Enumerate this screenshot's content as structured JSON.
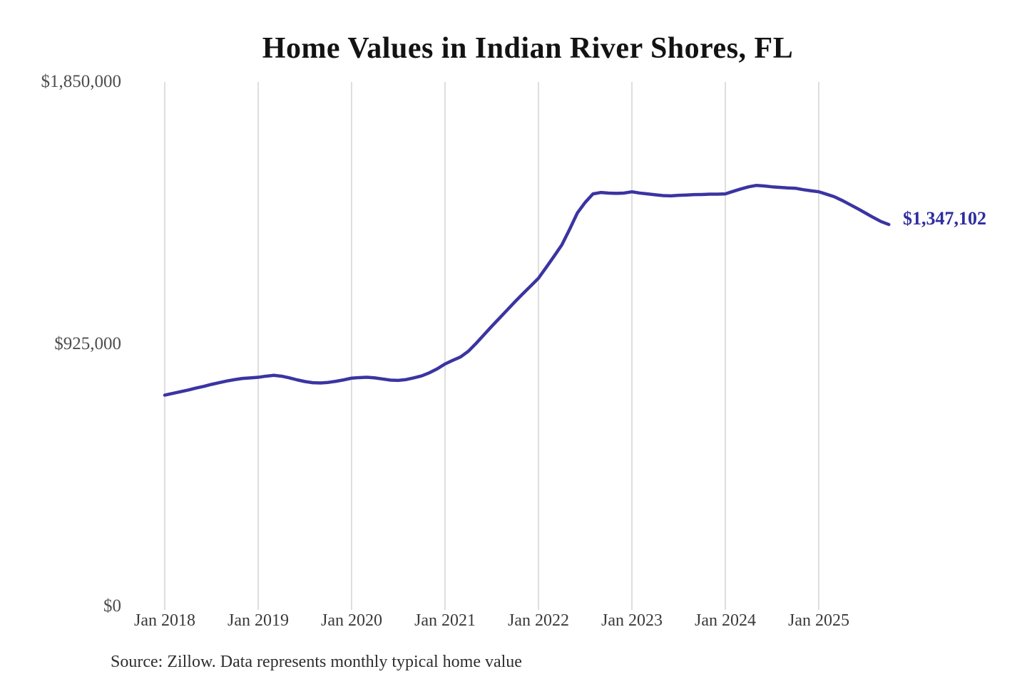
{
  "chart_data": {
    "type": "line",
    "title": "Home Values in Indian River Shores, FL",
    "source_note": "Source: Zillow. Data represents monthly typical home value",
    "end_label": "$1,347,102",
    "end_value": 1347102,
    "line_color": "#3b34a1",
    "grid_color": "#c9c9c9",
    "end_label_color": "#2e2d9f",
    "ylim": [
      0,
      1850000
    ],
    "grid": "vertical-only",
    "legend": "none",
    "xlabel": "",
    "ylabel": "",
    "y_ticks": [
      {
        "label": "$1,850,000",
        "value": 1850000
      },
      {
        "label": "$925,000",
        "value": 925000
      },
      {
        "label": "$0",
        "value": 0
      }
    ],
    "x_ticks": [
      {
        "label": "Jan 2018",
        "month_index": 0
      },
      {
        "label": "Jan 2019",
        "month_index": 12
      },
      {
        "label": "Jan 2020",
        "month_index": 24
      },
      {
        "label": "Jan 2021",
        "month_index": 36
      },
      {
        "label": "Jan 2022",
        "month_index": 48
      },
      {
        "label": "Jan 2023",
        "month_index": 60
      },
      {
        "label": "Jan 2024",
        "month_index": 72
      },
      {
        "label": "Jan 2025",
        "month_index": 84
      }
    ],
    "x": [
      "2018-01",
      "2018-02",
      "2018-03",
      "2018-04",
      "2018-05",
      "2018-06",
      "2018-07",
      "2018-08",
      "2018-09",
      "2018-10",
      "2018-11",
      "2018-12",
      "2019-01",
      "2019-02",
      "2019-03",
      "2019-04",
      "2019-05",
      "2019-06",
      "2019-07",
      "2019-08",
      "2019-09",
      "2019-10",
      "2019-11",
      "2019-12",
      "2020-01",
      "2020-02",
      "2020-03",
      "2020-04",
      "2020-05",
      "2020-06",
      "2020-07",
      "2020-08",
      "2020-09",
      "2020-10",
      "2020-11",
      "2020-12",
      "2021-01",
      "2021-02",
      "2021-03",
      "2021-04",
      "2021-05",
      "2021-06",
      "2021-07",
      "2021-08",
      "2021-09",
      "2021-10",
      "2021-11",
      "2021-12",
      "2022-01",
      "2022-02",
      "2022-03",
      "2022-04",
      "2022-05",
      "2022-06",
      "2022-07",
      "2022-08",
      "2022-09",
      "2022-10",
      "2022-11",
      "2022-12",
      "2023-01",
      "2023-02",
      "2023-03",
      "2023-04",
      "2023-05",
      "2023-06",
      "2023-07",
      "2023-08",
      "2023-09",
      "2023-10",
      "2023-11",
      "2023-12",
      "2024-01",
      "2024-02",
      "2024-03",
      "2024-04",
      "2024-05",
      "2024-06",
      "2024-07",
      "2024-08",
      "2024-09",
      "2024-10",
      "2024-11",
      "2024-12",
      "2025-01",
      "2025-02",
      "2025-03",
      "2025-04",
      "2025-05",
      "2025-06",
      "2025-07",
      "2025-08",
      "2025-09",
      "2025-10"
    ],
    "values": [
      745000,
      751000,
      757000,
      763000,
      770000,
      776000,
      783000,
      789000,
      795000,
      800000,
      804000,
      806000,
      808000,
      812000,
      815000,
      812000,
      806000,
      799000,
      793000,
      789000,
      788000,
      790000,
      794000,
      799000,
      805000,
      807000,
      808000,
      806000,
      802000,
      798000,
      797000,
      800000,
      806000,
      813000,
      824000,
      838000,
      855000,
      868000,
      880000,
      900000,
      928000,
      958000,
      988000,
      1017000,
      1046000,
      1075000,
      1103000,
      1130000,
      1157500,
      1196000,
      1235000,
      1275000,
      1330000,
      1388000,
      1425000,
      1455000,
      1460000,
      1458000,
      1457000,
      1458000,
      1462500,
      1458000,
      1455000,
      1452000,
      1449000,
      1448000,
      1450000,
      1451000,
      1452500,
      1453000,
      1454000,
      1454000,
      1455000,
      1464000,
      1472500,
      1480000,
      1485000,
      1483000,
      1480000,
      1478000,
      1476000,
      1475000,
      1470000,
      1466000,
      1462500,
      1454000,
      1445000,
      1432000,
      1417500,
      1403000,
      1387500,
      1372000,
      1357500,
      1347102
    ]
  }
}
